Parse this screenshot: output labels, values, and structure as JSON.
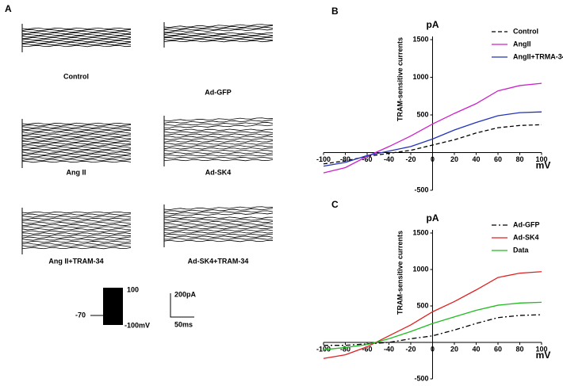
{
  "panel_a": {
    "label": "A",
    "traces": [
      "Control",
      "Ad-GFP",
      "Ang II",
      "Ad-SK4",
      "Ang II+TRAM-34",
      "Ad-SK4+TRAM-34"
    ],
    "protocol": {
      "hold": "-70",
      "top": "100",
      "bottom": "-100mV"
    },
    "scale": {
      "current": "200pA",
      "time": "50ms"
    }
  },
  "chart_data": [
    {
      "type": "line",
      "label": "B",
      "y_unit_label": "pA",
      "x_label": "mV",
      "y_label": "TRAM-sensitive currents",
      "legend": "top-right",
      "x": [
        -100,
        -80,
        -60,
        -40,
        -20,
        0,
        20,
        40,
        60,
        80,
        100
      ],
      "xlim": [
        -100,
        100
      ],
      "xticks": [
        -100,
        -80,
        -60,
        -40,
        -20,
        0,
        20,
        40,
        60,
        80,
        100
      ],
      "ylim": [
        -500,
        1500
      ],
      "yticks": [
        -500,
        500,
        1000,
        1500
      ],
      "series": [
        {
          "name": "Control",
          "color": "#000000",
          "dash": "dashed",
          "values": [
            -150,
            -110,
            -50,
            -10,
            30,
            100,
            170,
            260,
            330,
            360,
            370
          ]
        },
        {
          "name": "AngII",
          "color": "#cc22cc",
          "dash": "solid",
          "values": [
            -270,
            -200,
            -50,
            80,
            220,
            380,
            520,
            650,
            820,
            890,
            920
          ]
        },
        {
          "name": "AngII+TRMA-34",
          "color": "#2233bb",
          "dash": "solid",
          "values": [
            -180,
            -130,
            -40,
            20,
            80,
            180,
            300,
            400,
            490,
            530,
            540
          ]
        }
      ]
    },
    {
      "type": "line",
      "label": "C",
      "y_unit_label": "pA",
      "x_label": "mV",
      "y_label": "TRAM-sensitive currents",
      "legend": "top-right",
      "x": [
        -100,
        -80,
        -60,
        -40,
        -20,
        0,
        20,
        40,
        60,
        80,
        100
      ],
      "xlim": [
        -100,
        100
      ],
      "xticks": [
        -100,
        -80,
        -60,
        -40,
        -20,
        0,
        20,
        40,
        60,
        80,
        100
      ],
      "ylim": [
        -500,
        1500
      ],
      "yticks": [
        -500,
        500,
        1000,
        1500
      ],
      "series": [
        {
          "name": "Ad-GFP",
          "color": "#000000",
          "dash": "dashdot",
          "values": [
            -40,
            -40,
            -20,
            0,
            50,
            90,
            170,
            260,
            340,
            370,
            380
          ]
        },
        {
          "name": "Ad-SK4",
          "color": "#e02020",
          "dash": "solid",
          "values": [
            -220,
            -170,
            -60,
            90,
            240,
            420,
            560,
            720,
            890,
            950,
            970
          ]
        },
        {
          "name": "Data",
          "color": "#22bb22",
          "dash": "solid",
          "values": [
            -100,
            -70,
            -30,
            50,
            150,
            260,
            350,
            440,
            510,
            540,
            550
          ]
        }
      ]
    }
  ]
}
